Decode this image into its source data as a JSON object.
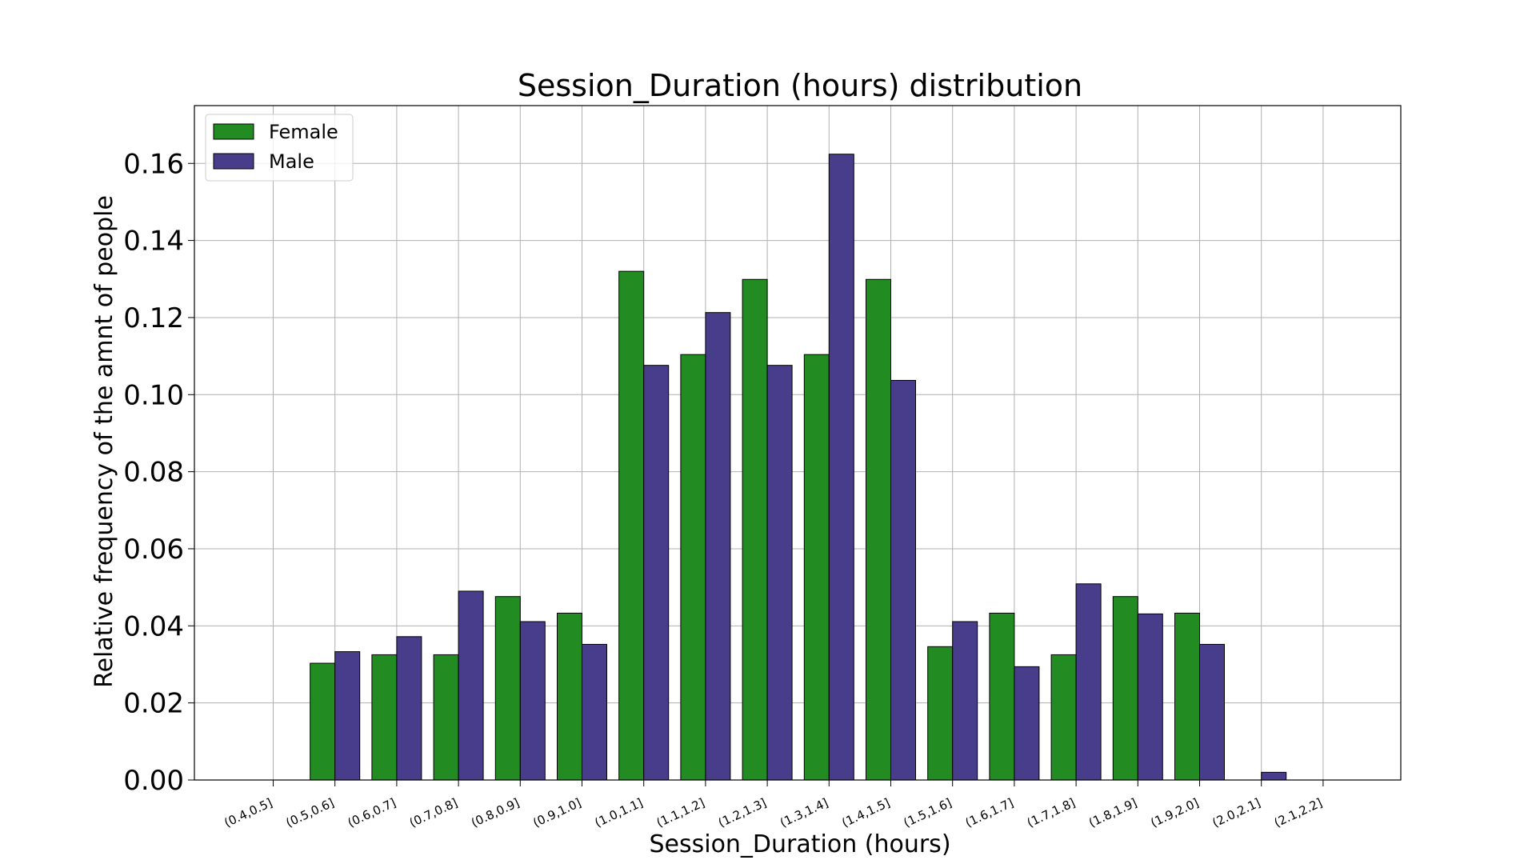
{
  "chart_data": {
    "type": "bar",
    "title": "Session_Duration (hours) distribution",
    "xlabel": "Session_Duration (hours)",
    "ylabel": "Relative frequency of the amnt of people",
    "ylim": [
      0,
      0.175
    ],
    "yticks": [
      "0.00",
      "0.02",
      "0.04",
      "0.06",
      "0.08",
      "0.10",
      "0.12",
      "0.14",
      "0.16"
    ],
    "grid": true,
    "legend_position": "top-left",
    "categories": [
      "(0.4,0.5]",
      "(0.5,0.6]",
      "(0.6,0.7]",
      "(0.7,0.8]",
      "(0.8,0.9]",
      "(0.9,1.0]",
      "(1.0,1.1]",
      "(1.1,1.2]",
      "(1.2,1.3]",
      "(1.3,1.4]",
      "(1.4,1.5]",
      "(1.5,1.6]",
      "(1.6,1.7]",
      "(1.7,1.8]",
      "(1.8,1.9]",
      "(1.9,2.0]",
      "(2.0,2.1]",
      "(2.1,2.2]"
    ],
    "series": [
      {
        "name": "Female",
        "color": "#228b22",
        "values": [
          0.0,
          0.0303,
          0.0325,
          0.0325,
          0.0476,
          0.0433,
          0.132,
          0.1104,
          0.1299,
          0.1104,
          0.1299,
          0.0346,
          0.0433,
          0.0325,
          0.0476,
          0.0433,
          0.0,
          0.0
        ]
      },
      {
        "name": "Male",
        "color": "#483d8b",
        "values": [
          0.0,
          0.0333,
          0.0372,
          0.049,
          0.0411,
          0.0352,
          0.1076,
          0.1213,
          0.1076,
          0.1624,
          0.1037,
          0.0411,
          0.0294,
          0.0509,
          0.0431,
          0.0352,
          0.002,
          0.0
        ]
      }
    ]
  }
}
